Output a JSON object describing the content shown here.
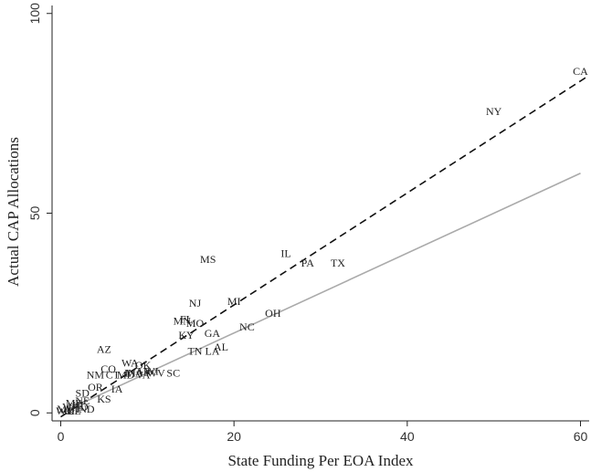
{
  "chart_data": {
    "type": "scatter",
    "xlabel": "State Funding Per EOA Index",
    "ylabel": "Actual CAP Allocations",
    "xlim": [
      -1,
      61
    ],
    "ylim": [
      -2,
      102
    ],
    "xticks": [
      0,
      20,
      40,
      60
    ],
    "yticks": [
      0,
      50,
      100
    ],
    "grid": false,
    "points": [
      {
        "label": "CA",
        "x": 60.0,
        "y": 85.5
      },
      {
        "label": "NY",
        "x": 50.0,
        "y": 75.5
      },
      {
        "label": "MS",
        "x": 17.0,
        "y": 38.5
      },
      {
        "label": "IL",
        "x": 26.0,
        "y": 40.0
      },
      {
        "label": "PA",
        "x": 28.5,
        "y": 37.5
      },
      {
        "label": "TX",
        "x": 32.0,
        "y": 37.5
      },
      {
        "label": "NJ",
        "x": 15.5,
        "y": 27.5
      },
      {
        "label": "MI",
        "x": 20.0,
        "y": 28.0
      },
      {
        "label": "OH",
        "x": 24.5,
        "y": 25.0
      },
      {
        "label": "MN",
        "x": 14.0,
        "y": 23.0
      },
      {
        "label": "FL",
        "x": 14.5,
        "y": 23.5
      },
      {
        "label": "MO",
        "x": 15.5,
        "y": 22.5
      },
      {
        "label": "NC",
        "x": 21.5,
        "y": 21.5
      },
      {
        "label": "KY",
        "x": 14.5,
        "y": 19.5
      },
      {
        "label": "GA",
        "x": 17.5,
        "y": 20.0
      },
      {
        "label": "AL",
        "x": 18.5,
        "y": 16.5
      },
      {
        "label": "LA",
        "x": 17.5,
        "y": 15.5
      },
      {
        "label": "TN",
        "x": 15.5,
        "y": 15.5
      },
      {
        "label": "AZ",
        "x": 5.0,
        "y": 16.0
      },
      {
        "label": "WA",
        "x": 8.0,
        "y": 12.5
      },
      {
        "label": "OK",
        "x": 9.5,
        "y": 12.0
      },
      {
        "label": "CO",
        "x": 5.5,
        "y": 11.0
      },
      {
        "label": "NM",
        "x": 4.0,
        "y": 9.5
      },
      {
        "label": "CT",
        "x": 6.0,
        "y": 9.5
      },
      {
        "label": "MD",
        "x": 7.5,
        "y": 9.5
      },
      {
        "label": "IN",
        "x": 8.0,
        "y": 10.0
      },
      {
        "label": "MA",
        "x": 8.5,
        "y": 10.0
      },
      {
        "label": "AR",
        "x": 9.5,
        "y": 10.5
      },
      {
        "label": "VA",
        "x": 9.5,
        "y": 9.5
      },
      {
        "label": "WI",
        "x": 10.5,
        "y": 10.5
      },
      {
        "label": "WV",
        "x": 11.0,
        "y": 10.0
      },
      {
        "label": "SC",
        "x": 13.0,
        "y": 10.0
      },
      {
        "label": "OR",
        "x": 4.0,
        "y": 6.5
      },
      {
        "label": "IA",
        "x": 6.5,
        "y": 6.0
      },
      {
        "label": "SD",
        "x": 2.5,
        "y": 5.0
      },
      {
        "label": "KS",
        "x": 5.0,
        "y": 3.5
      },
      {
        "label": "NE",
        "x": 2.5,
        "y": 3.0
      },
      {
        "label": "ME",
        "x": 1.5,
        "y": 2.5
      },
      {
        "label": "HI",
        "x": 2.0,
        "y": 2.0
      },
      {
        "label": "VT",
        "x": 1.0,
        "y": 1.5
      },
      {
        "label": "ID",
        "x": 2.5,
        "y": 1.5
      },
      {
        "label": "UT",
        "x": 1.5,
        "y": 1.0
      },
      {
        "label": "MT",
        "x": 0.5,
        "y": 1.0
      },
      {
        "label": "DE",
        "x": 1.5,
        "y": 0.5
      },
      {
        "label": "ND",
        "x": 3.0,
        "y": 1.0
      },
      {
        "label": "RI",
        "x": 1.0,
        "y": 0.5
      },
      {
        "label": "WY",
        "x": 0.5,
        "y": 0.5
      }
    ],
    "lines": [
      {
        "style": "dashed",
        "color": "#111111",
        "x": [
          0,
          61
        ],
        "y": [
          -1.0,
          84.5
        ]
      },
      {
        "style": "solid",
        "color": "#aaaaaa",
        "x": [
          0,
          60
        ],
        "y": [
          0,
          60
        ]
      }
    ]
  }
}
